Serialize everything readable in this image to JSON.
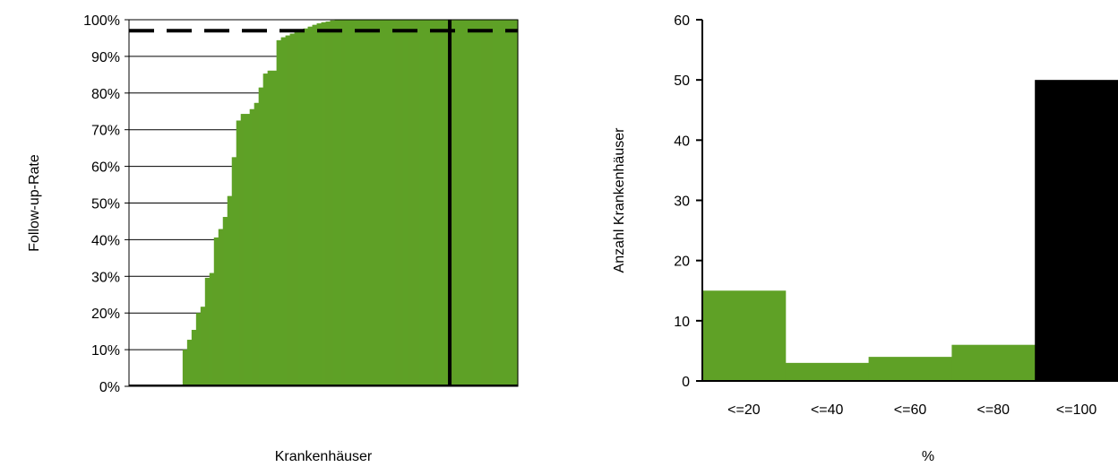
{
  "colors": {
    "bar": "#5fa126",
    "highlight": "#000000",
    "gridline": "#000000",
    "background": "#ffffff"
  },
  "chart_data": [
    {
      "type": "bar",
      "xlabel": "Krankenhäuser",
      "ylabel": "Follow-up-Rate",
      "ylim": [
        0,
        100
      ],
      "ytick_labels": [
        "0%",
        "10%",
        "20%",
        "30%",
        "40%",
        "50%",
        "60%",
        "70%",
        "80%",
        "90%",
        "100%"
      ],
      "grid": "horizontal",
      "values": [
        0,
        0,
        0,
        0,
        0,
        0,
        0,
        0,
        0,
        0,
        0,
        0,
        0,
        0,
        0,
        0,
        0,
        0,
        0,
        0,
        0,
        0,
        0,
        0,
        0,
        0,
        0,
        0,
        0,
        0,
        0,
        0,
        0,
        0,
        0,
        0,
        0,
        0,
        0,
        0,
        0,
        0,
        0,
        0,
        0,
        0,
        0,
        0,
        0,
        0,
        0,
        0,
        0,
        0,
        0,
        0,
        0,
        0,
        0,
        0,
        10,
        10,
        10,
        10,
        10,
        12.7,
        12.7,
        12.7,
        12.7,
        12.7,
        15.4,
        15.4,
        15.4,
        15.4,
        15.4,
        20,
        20,
        20,
        20,
        20,
        21.7,
        21.7,
        21.7,
        21.7,
        21.7,
        29.6,
        29.6,
        29.6,
        29.6,
        29.6,
        30.9,
        30.9,
        30.9,
        30.9,
        30.9,
        40.6,
        40.6,
        40.6,
        40.6,
        40.6,
        42.9,
        42.9,
        42.9,
        42.9,
        42.9,
        46.2,
        46.2,
        46.2,
        46.2,
        46.2,
        51.9,
        51.9,
        51.9,
        51.9,
        51.9,
        62.5,
        62.5,
        62.5,
        62.5,
        62.5,
        72.5,
        72.5,
        72.5,
        72.5,
        72.5,
        74.3,
        74.3,
        74.3,
        74.3,
        74.3,
        74.3,
        74.3,
        74.3,
        74.3,
        74.3,
        75.6,
        75.6,
        75.6,
        75.6,
        75.6,
        77.3,
        77.3,
        77.3,
        77.3,
        77.3,
        81.5,
        81.5,
        81.5,
        81.5,
        81.5,
        85.3,
        85.3,
        85.3,
        85.3,
        85.3,
        86.1,
        86.1,
        86.1,
        86.1,
        86.1,
        86.1,
        86.1,
        86.1,
        86.1,
        86.1,
        94.4,
        94.4,
        94.4,
        94.4,
        94.4,
        95.2,
        95.2,
        95.2,
        95.2,
        95.2,
        95.7,
        95.7,
        95.7,
        95.7,
        95.7,
        96.2,
        96.2,
        96.2,
        96.2,
        96.2,
        96.7,
        96.7,
        96.7,
        96.7,
        96.7,
        97.2,
        97.2,
        97.2,
        97.2,
        97.2,
        97.6,
        97.6,
        97.6,
        97.6,
        97.6,
        98.1,
        98.1,
        98.1,
        98.1,
        98.1,
        98.6,
        98.6,
        98.6,
        98.6,
        98.6,
        99,
        99,
        99,
        99,
        99,
        99.3,
        99.3,
        99.3,
        99.3,
        99.3,
        99.5,
        99.5,
        99.5,
        99.5,
        99.5,
        99.8,
        99.8,
        99.8,
        99.8,
        99.8,
        100,
        100,
        100,
        100,
        100,
        100,
        100,
        100,
        100,
        100,
        100,
        100,
        100,
        100,
        100,
        100,
        100,
        100,
        100,
        100,
        100,
        100,
        100,
        100,
        100,
        100,
        100,
        100,
        100,
        100,
        100,
        100,
        100,
        100,
        100,
        100,
        100,
        100,
        100,
        100,
        100,
        100,
        100,
        100,
        100,
        100,
        100,
        100,
        100,
        100,
        100,
        100,
        100,
        100,
        100,
        100,
        100,
        100,
        100,
        100,
        100,
        100,
        100,
        100,
        100,
        100,
        100,
        100,
        100,
        100,
        100,
        100,
        100,
        100,
        100,
        100,
        100,
        100,
        100,
        100,
        100,
        100,
        100,
        100,
        100,
        100,
        100,
        100,
        100,
        100,
        100,
        100,
        100,
        100,
        100,
        100,
        100,
        100,
        100,
        100,
        100,
        100,
        100,
        100,
        100,
        100,
        100,
        100,
        100,
        100,
        100,
        100,
        100,
        100,
        100,
        100,
        100,
        100,
        100,
        100,
        100,
        100,
        100,
        100,
        100,
        100,
        100,
        100,
        100,
        100,
        100,
        100,
        100,
        100,
        100,
        100,
        100,
        100,
        100,
        100,
        100,
        100,
        100,
        100,
        100,
        100,
        100,
        100,
        100,
        100,
        100,
        100,
        100,
        100,
        100,
        100,
        100,
        100,
        100,
        100,
        100,
        100,
        100,
        100,
        100,
        100,
        100,
        100,
        100,
        100,
        100,
        100,
        100,
        100,
        100,
        100,
        100,
        100,
        100,
        100,
        100,
        100,
        100,
        100,
        100,
        100,
        100,
        100,
        100,
        100,
        100,
        100,
        100,
        100,
        100,
        100,
        100,
        100,
        100,
        100,
        100,
        100,
        100,
        100,
        100
      ],
      "reference_line_y": 97,
      "marker_line_x_fraction": 0.825
    },
    {
      "type": "bar",
      "xlabel": "%",
      "ylabel": "Anzahl Krankenhäuser",
      "ylim": [
        0,
        60
      ],
      "yticks": [
        0,
        10,
        20,
        30,
        40,
        50,
        60
      ],
      "categories": [
        "<=20",
        "<=40",
        "<=60",
        "<=80",
        "<=100"
      ],
      "values": [
        15,
        3,
        4,
        6,
        50
      ],
      "highlight_category": "<=100"
    }
  ]
}
